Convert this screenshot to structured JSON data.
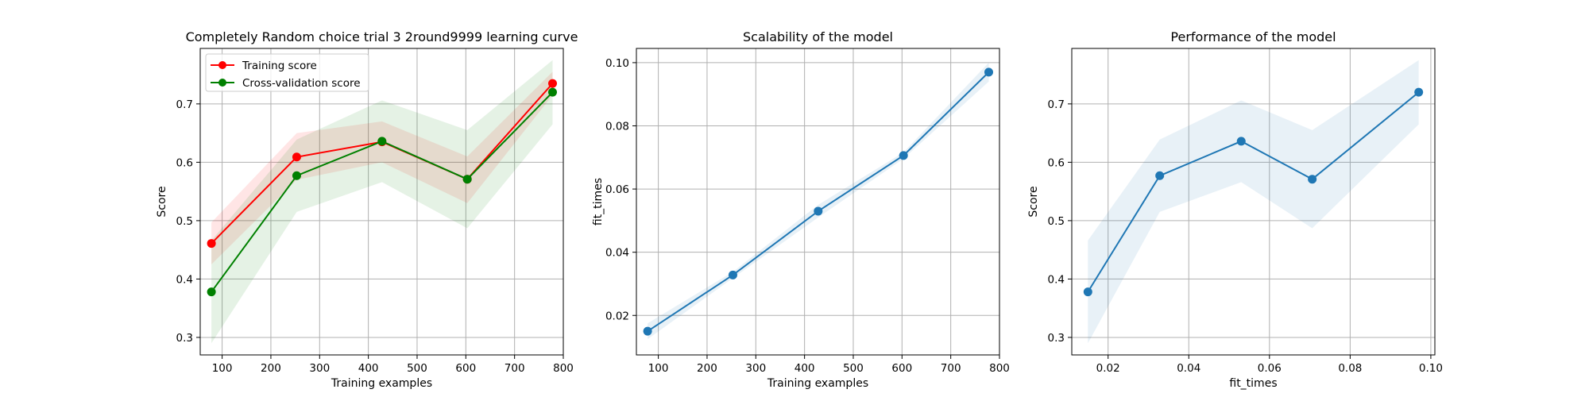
{
  "chart_data": [
    {
      "type": "line",
      "title": "Completely Random choice trial 3 2round9999 learning curve",
      "xlabel": "Training examples",
      "ylabel": "Score",
      "xlim": [
        55,
        800
      ],
      "ylim": [
        0.27,
        0.795
      ],
      "xticks": [
        100,
        200,
        300,
        400,
        500,
        600,
        700,
        800
      ],
      "yticks": [
        0.3,
        0.4,
        0.5,
        0.6,
        0.7
      ],
      "ytick_labels": [
        "0.3",
        "0.4",
        "0.5",
        "0.6",
        "0.7"
      ],
      "grid": true,
      "legend": "top-left",
      "x": [
        78,
        253,
        428,
        603,
        778
      ],
      "series": [
        {
          "name": "Training score",
          "color": "#ff0000",
          "values": [
            0.461,
            0.609,
            0.635,
            0.571,
            0.735
          ],
          "band_lower": [
            0.425,
            0.57,
            0.6,
            0.53,
            0.715
          ],
          "band_upper": [
            0.497,
            0.65,
            0.67,
            0.61,
            0.755
          ]
        },
        {
          "name": "Cross-validation score",
          "color": "#008000",
          "values": [
            0.378,
            0.577,
            0.636,
            0.571,
            0.72
          ],
          "band_lower": [
            0.29,
            0.515,
            0.566,
            0.487,
            0.665
          ],
          "band_upper": [
            0.466,
            0.639,
            0.706,
            0.655,
            0.775
          ]
        }
      ]
    },
    {
      "type": "line",
      "title": "Scalability of the model",
      "xlabel": "Training examples",
      "ylabel": "fit_times",
      "xlim": [
        55,
        800
      ],
      "ylim": [
        0.0075,
        0.1045
      ],
      "xticks": [
        100,
        200,
        300,
        400,
        500,
        600,
        700,
        800
      ],
      "yticks": [
        0.02,
        0.04,
        0.06,
        0.08,
        0.1
      ],
      "ytick_labels": [
        "0.02",
        "0.04",
        "0.06",
        "0.08",
        "0.10"
      ],
      "grid": true,
      "x": [
        78,
        253,
        428,
        603,
        778
      ],
      "series": [
        {
          "name": "",
          "color": "#1f77b4",
          "values": [
            0.015,
            0.0328,
            0.053,
            0.0706,
            0.097
          ],
          "band_lower": [
            0.0125,
            0.0318,
            0.051,
            0.0696,
            0.094
          ],
          "band_upper": [
            0.0175,
            0.0338,
            0.055,
            0.0716,
            0.1
          ]
        }
      ]
    },
    {
      "type": "line",
      "title": "Performance of the model",
      "xlabel": "fit_times",
      "ylabel": "Score",
      "xlim": [
        0.011,
        0.101
      ],
      "ylim": [
        0.27,
        0.795
      ],
      "xticks": [
        0.02,
        0.04,
        0.06,
        0.08,
        0.1
      ],
      "xtick_labels": [
        "0.02",
        "0.04",
        "0.06",
        "0.08",
        "0.10"
      ],
      "yticks": [
        0.3,
        0.4,
        0.5,
        0.6,
        0.7
      ],
      "ytick_labels": [
        "0.3",
        "0.4",
        "0.5",
        "0.6",
        "0.7"
      ],
      "grid": true,
      "x": [
        0.015,
        0.0328,
        0.053,
        0.0706,
        0.097
      ],
      "series": [
        {
          "name": "",
          "color": "#1f77b4",
          "values": [
            0.378,
            0.577,
            0.636,
            0.571,
            0.72
          ],
          "band_lower": [
            0.29,
            0.515,
            0.566,
            0.487,
            0.665
          ],
          "band_upper": [
            0.466,
            0.639,
            0.706,
            0.655,
            0.775
          ]
        }
      ]
    }
  ]
}
